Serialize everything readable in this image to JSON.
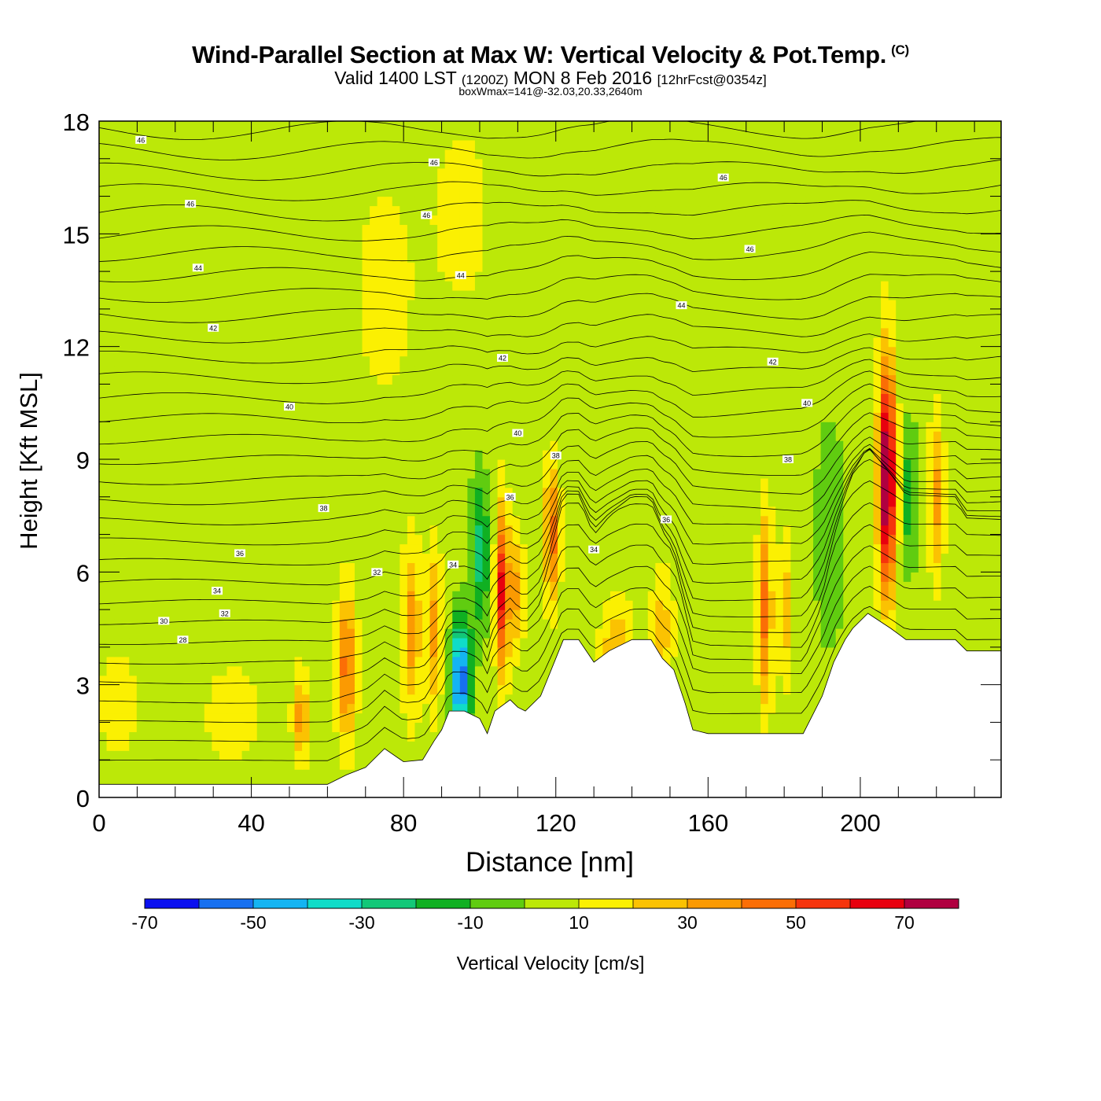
{
  "title": {
    "main": "Wind-Parallel Section at Max W: Vertical Velocity & Pot.Temp.",
    "copyright": "(C)",
    "valid_prefix": "Valid 1400 LST",
    "valid_zulu": "(1200Z)",
    "valid_date": "MON 8 Feb 2016",
    "forecast": "[12hrFcst@0354z]",
    "box_info": "boxWmax=141@-32.03,20.33,2640m"
  },
  "colorbar": {
    "label": "Vertical Velocity [cm/s]",
    "colors": [
      "#0a10f0",
      "#1770f0",
      "#14b4f2",
      "#10dcc8",
      "#12c878",
      "#10b022",
      "#60cc10",
      "#bce808",
      "#fbf002",
      "#fbc202",
      "#fb9a02",
      "#fb6e06",
      "#f6340c",
      "#e8000e",
      "#b00040"
    ],
    "tick_labels": [
      "-70",
      "-50",
      "-30",
      "-10",
      "10",
      "30",
      "50",
      "70"
    ]
  },
  "chart_data": {
    "type": "heatmap",
    "title": "Wind-Parallel Section at Max W: Vertical Velocity & Pot.Temp.",
    "xlabel": "Distance [nm]",
    "ylabel": "Height [Kft MSL]",
    "xlim": [
      0,
      237
    ],
    "ylim": [
      0,
      18
    ],
    "x_ticks": [
      0,
      40,
      80,
      120,
      160,
      200
    ],
    "y_ticks": [
      0,
      3,
      6,
      9,
      12,
      15,
      18
    ],
    "background_w_class": -5,
    "w_features": [
      {
        "x": 20,
        "y": 12.5,
        "w": 0,
        "sx": 12,
        "sy": 3.5
      },
      {
        "x": 75,
        "y": 13.5,
        "w": 5,
        "sx": 8,
        "sy": 3
      },
      {
        "x": 95,
        "y": 15.5,
        "w": 5,
        "sx": 8,
        "sy": 2.5
      },
      {
        "x": 180,
        "y": 14.5,
        "w": 0,
        "sx": 20,
        "sy": 2.5
      },
      {
        "x": 5,
        "y": 2.5,
        "w": 5,
        "sx": 6,
        "sy": 1.5
      },
      {
        "x": 35,
        "y": 2.2,
        "w": 5,
        "sx": 8,
        "sy": 1.5
      },
      {
        "x": 53,
        "y": 2.2,
        "w": 25,
        "sx": 2,
        "sy": 1.2
      },
      {
        "x": 65,
        "y": 3.5,
        "w": 35,
        "sx": 2.4,
        "sy": 2.0
      },
      {
        "x": 82,
        "y": 4.5,
        "w": 25,
        "sx": 2.4,
        "sy": 2.2
      },
      {
        "x": 88,
        "y": 4.5,
        "w": 25,
        "sx": 2.2,
        "sy": 2.0
      },
      {
        "x": 95,
        "y": 3.2,
        "w": -70,
        "sx": 2.6,
        "sy": 1.5
      },
      {
        "x": 100,
        "y": 6.5,
        "w": -35,
        "sx": 2.5,
        "sy": 2.0
      },
      {
        "x": 106,
        "y": 5.5,
        "w": 55,
        "sx": 1.8,
        "sy": 2.2
      },
      {
        "x": 110,
        "y": 5.5,
        "w": 25,
        "sx": 1.5,
        "sy": 1.5
      },
      {
        "x": 119,
        "y": 7.0,
        "w": 35,
        "sx": 2.0,
        "sy": 1.8
      },
      {
        "x": 136,
        "y": 4.0,
        "w": 20,
        "sx": 4,
        "sy": 1.2
      },
      {
        "x": 148,
        "y": 4.5,
        "w": 15,
        "sx": 3,
        "sy": 1.5
      },
      {
        "x": 175,
        "y": 5.0,
        "w": 35,
        "sx": 1.8,
        "sy": 2.5
      },
      {
        "x": 180,
        "y": 5.0,
        "w": 20,
        "sx": 1.4,
        "sy": 2.0
      },
      {
        "x": 192,
        "y": 7.0,
        "w": -20,
        "sx": 4,
        "sy": 3
      },
      {
        "x": 207,
        "y": 8.5,
        "w": 80,
        "sx": 2.2,
        "sy": 3.0
      },
      {
        "x": 213,
        "y": 8.0,
        "w": -30,
        "sx": 1.6,
        "sy": 2.0
      },
      {
        "x": 220,
        "y": 8.0,
        "w": 25,
        "sx": 2.0,
        "sy": 2.0
      }
    ],
    "terrain": [
      [
        0,
        0.35
      ],
      [
        20,
        0.35
      ],
      [
        40,
        0.35
      ],
      [
        55,
        0.35
      ],
      [
        60,
        0.35
      ],
      [
        65,
        0.6
      ],
      [
        70,
        0.8
      ],
      [
        75,
        1.3
      ],
      [
        80,
        0.95
      ],
      [
        85,
        1.0
      ],
      [
        88,
        1.5
      ],
      [
        90,
        1.8
      ],
      [
        92,
        2.3
      ],
      [
        96,
        2.3
      ],
      [
        100,
        2.1
      ],
      [
        102,
        1.7
      ],
      [
        104,
        2.3
      ],
      [
        108,
        2.6
      ],
      [
        110,
        2.4
      ],
      [
        112,
        2.3
      ],
      [
        116,
        2.7
      ],
      [
        118,
        3.2
      ],
      [
        122,
        4.2
      ],
      [
        126,
        4.2
      ],
      [
        130,
        3.6
      ],
      [
        134,
        3.9
      ],
      [
        140,
        4.2
      ],
      [
        145,
        4.2
      ],
      [
        148,
        3.7
      ],
      [
        151,
        3.4
      ],
      [
        154,
        2.5
      ],
      [
        156,
        1.8
      ],
      [
        160,
        1.7
      ],
      [
        180,
        1.7
      ],
      [
        185,
        1.7
      ],
      [
        188,
        2.3
      ],
      [
        190,
        2.7
      ],
      [
        193,
        3.6
      ],
      [
        196,
        4.2
      ],
      [
        198,
        4.5
      ],
      [
        202,
        4.9
      ],
      [
        208,
        4.5
      ],
      [
        212,
        4.2
      ],
      [
        225,
        4.2
      ],
      [
        228,
        3.9
      ],
      [
        237,
        3.9
      ]
    ],
    "theta_contour_labels": [
      {
        "text": "46",
        "x": 11,
        "y": 17.5
      },
      {
        "text": "46",
        "x": 88,
        "y": 16.9
      },
      {
        "text": "46",
        "x": 164,
        "y": 16.5
      },
      {
        "text": "46",
        "x": 24,
        "y": 15.8
      },
      {
        "text": "46",
        "x": 86,
        "y": 15.5
      },
      {
        "text": "46",
        "x": 171,
        "y": 14.6
      },
      {
        "text": "44",
        "x": 26,
        "y": 14.1
      },
      {
        "text": "44",
        "x": 95,
        "y": 13.9
      },
      {
        "text": "44",
        "x": 153,
        "y": 13.1
      },
      {
        "text": "42",
        "x": 30,
        "y": 12.5
      },
      {
        "text": "42",
        "x": 106,
        "y": 11.7
      },
      {
        "text": "42",
        "x": 177,
        "y": 11.6
      },
      {
        "text": "40",
        "x": 50,
        "y": 10.4
      },
      {
        "text": "40",
        "x": 110,
        "y": 9.7
      },
      {
        "text": "40",
        "x": 186,
        "y": 10.5
      },
      {
        "text": "38",
        "x": 120,
        "y": 9.1
      },
      {
        "text": "38",
        "x": 181,
        "y": 9.0
      },
      {
        "text": "38",
        "x": 59,
        "y": 7.7
      },
      {
        "text": "36",
        "x": 108,
        "y": 8.0
      },
      {
        "text": "36",
        "x": 149,
        "y": 7.4
      },
      {
        "text": "36",
        "x": 37,
        "y": 6.5
      },
      {
        "text": "34",
        "x": 93,
        "y": 6.2
      },
      {
        "text": "34",
        "x": 130,
        "y": 6.6
      },
      {
        "text": "34",
        "x": 31,
        "y": 5.5
      },
      {
        "text": "32",
        "x": 73,
        "y": 6.0
      },
      {
        "text": "32",
        "x": 33,
        "y": 4.9
      },
      {
        "text": "30",
        "x": 17,
        "y": 4.7
      },
      {
        "text": "28",
        "x": 22,
        "y": 4.2
      }
    ]
  }
}
